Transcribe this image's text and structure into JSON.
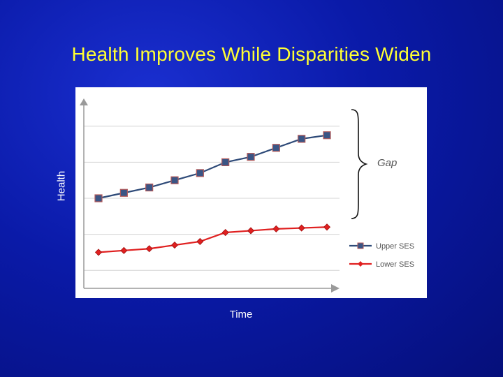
{
  "slide": {
    "title": "Health Improves While Disparities Widen"
  },
  "chart_data": {
    "type": "line",
    "title": "",
    "xlabel": "Time",
    "ylabel": "Health",
    "x": [
      1,
      2,
      3,
      4,
      5,
      6,
      7,
      8,
      9,
      10
    ],
    "ylim": [
      0,
      100
    ],
    "grid": true,
    "legend_position": "bottom-right",
    "series": [
      {
        "name": "Upper SES",
        "color": "#2e4a78",
        "marker": "square",
        "values": [
          50,
          53,
          56,
          60,
          64,
          70,
          73,
          78,
          83,
          85
        ]
      },
      {
        "name": "Lower SES",
        "color": "#e02020",
        "marker": "diamond",
        "values": [
          20,
          21,
          22,
          24,
          26,
          31,
          32,
          33,
          33.5,
          34
        ]
      }
    ],
    "annotation": {
      "label": "Gap",
      "type": "brace"
    }
  }
}
